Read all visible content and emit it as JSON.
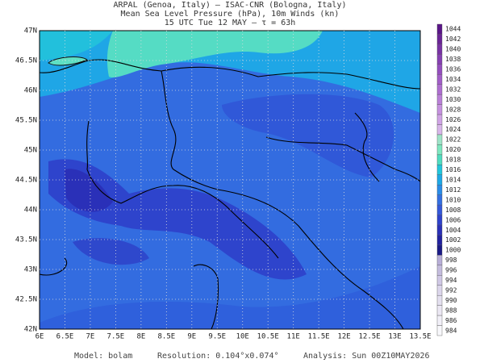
{
  "header": {
    "line1": "ARPAL (Genoa, Italy)  —  ISAC-CNR (Bologna, Italy)",
    "line2": "Mean Sea Level Pressure (hPa), 10m Winds (kn)",
    "line3": "15 UTC Tue 12 MAY  —  τ = 63h"
  },
  "map": {
    "lon_labels": [
      "6E",
      "6.5E",
      "7E",
      "7.5E",
      "8E",
      "8.5E",
      "9E",
      "9.5E",
      "10E",
      "10.5E",
      "11E",
      "11.5E",
      "12E",
      "12.5E",
      "13E",
      "13.5E"
    ],
    "lat_labels": [
      "47N",
      "46.5N",
      "46N",
      "45.5N",
      "45N",
      "44.5N",
      "44N",
      "43.5N",
      "43N",
      "42.5N",
      "42N"
    ]
  },
  "colorbar": {
    "levels": [
      1044,
      1042,
      1040,
      1038,
      1036,
      1034,
      1032,
      1030,
      1028,
      1026,
      1024,
      1022,
      1020,
      1018,
      1016,
      1014,
      1012,
      1010,
      1008,
      1006,
      1004,
      1002,
      1000,
      998,
      996,
      994,
      992,
      990,
      988,
      986,
      984
    ],
    "colors": [
      "#5a1688",
      "#6a2496",
      "#7832a4",
      "#8640b2",
      "#944ebe",
      "#a25ec8",
      "#ae6ed0",
      "#ba80d8",
      "#c692e0",
      "#d0a4e6",
      "#d8b6ea",
      "#9ee4c8",
      "#7ee8c0",
      "#50dcc0",
      "#22c6dc",
      "#1ea8e6",
      "#2a8ce8",
      "#336fe2",
      "#3458da",
      "#2e42cc",
      "#2a30b8",
      "#2222a0",
      "#1a1a86",
      "#b8aed8",
      "#c4bcde",
      "#d0c8e6",
      "#dcd6ec",
      "#e4e0f0",
      "#ece8f4",
      "#f2f0f8",
      "#f8f8fc"
    ]
  },
  "footer": {
    "model": "Model:  bolam",
    "resolution": "Resolution:  0.104°x0.074°",
    "analysis": "Analysis:  Sun  00Z10MAY2026"
  }
}
